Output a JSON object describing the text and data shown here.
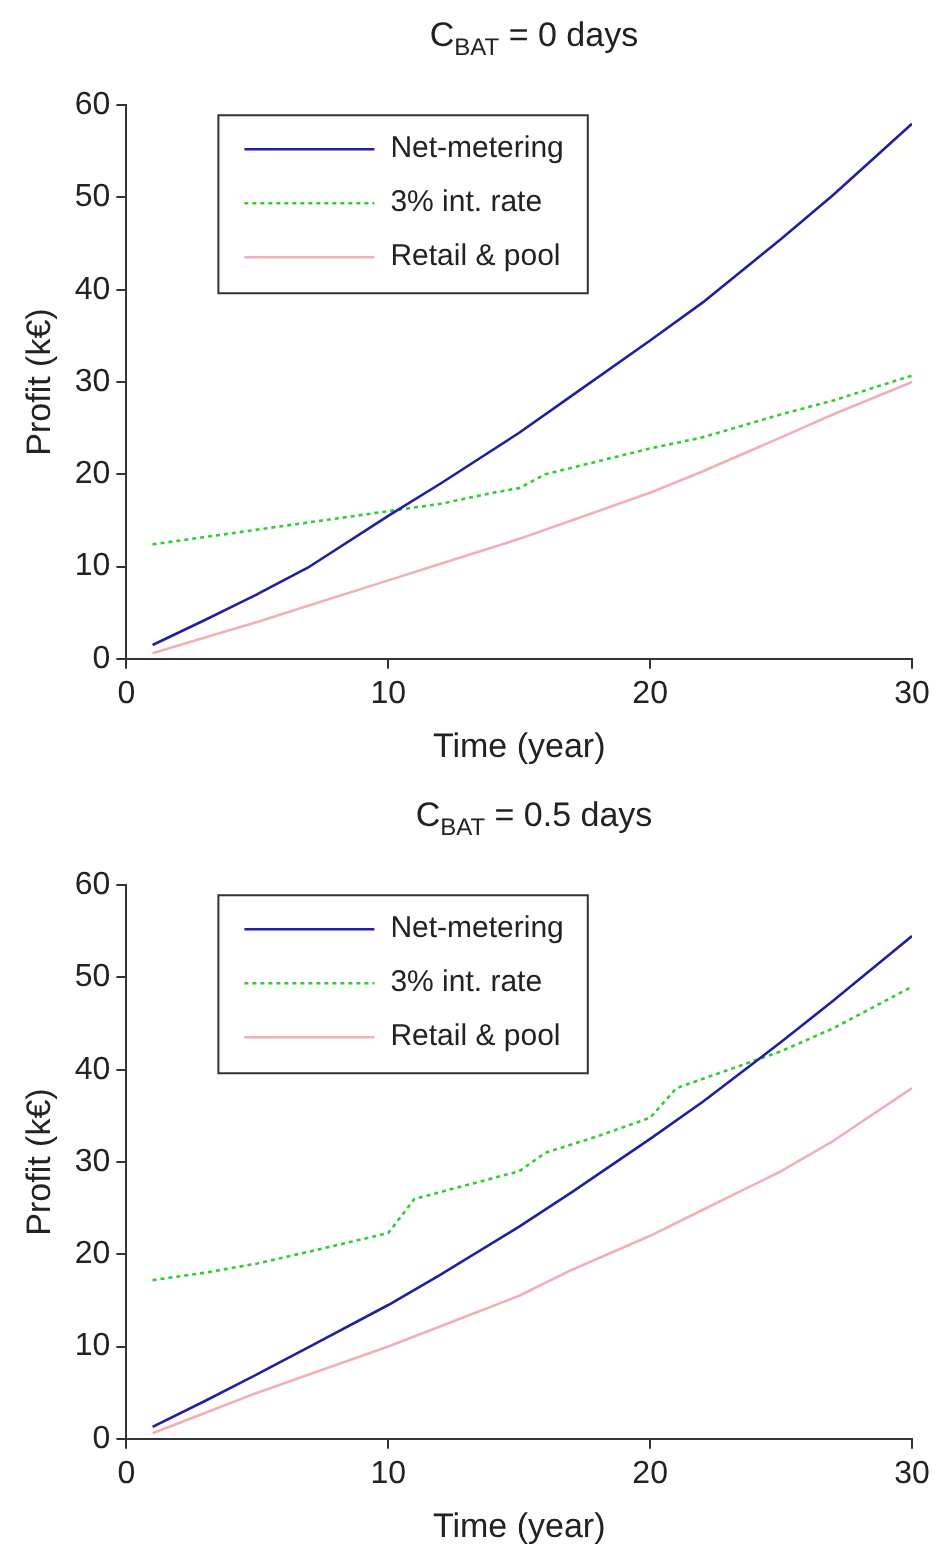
{
  "chart_data": [
    {
      "type": "line",
      "title": "C$_{BAT}$ = 0 days",
      "xlabel": "Time (year)",
      "ylabel": "Profit (k€)",
      "xlim": [
        0,
        30
      ],
      "xticks": [
        0,
        10,
        20,
        30
      ],
      "ylim": [
        0,
        60
      ],
      "yticks": [
        0,
        10,
        20,
        30,
        40,
        50,
        60
      ],
      "grid": false,
      "legend": "top left",
      "marker": "none",
      "series": [
        {
          "name": "Net-metering",
          "color": "#1f1f9f",
          "line_style": "solid",
          "x": [
            1,
            3,
            5,
            7,
            10,
            12,
            15,
            17,
            20,
            22,
            25,
            27,
            30
          ],
          "values": [
            1.5,
            4.2,
            7,
            10,
            15.5,
            19,
            24.5,
            28.5,
            34.5,
            38.6,
            45.5,
            50.3,
            58
          ]
        },
        {
          "name": "3% int. rate",
          "color": "#33cc33",
          "line_style": "dotted",
          "x": [
            1,
            3,
            5,
            7,
            10,
            12,
            14,
            15,
            16,
            18,
            20,
            22,
            25,
            27,
            30
          ],
          "values": [
            12.4,
            13.2,
            14,
            14.8,
            16,
            16.8,
            18,
            18.5,
            20,
            21.4,
            22.8,
            24,
            26.5,
            28,
            30.7
          ]
        },
        {
          "name": "Retail & pool",
          "color": "#f0b0b8",
          "line_style": "solid",
          "x": [
            1,
            3,
            5,
            7,
            10,
            12,
            15,
            17,
            20,
            22,
            25,
            27,
            30
          ],
          "values": [
            0.6,
            2.3,
            4,
            5.8,
            8.5,
            10.3,
            13,
            15,
            18,
            20.3,
            24,
            26.5,
            30
          ]
        }
      ]
    },
    {
      "type": "line",
      "title": "C$_{BAT}$ = 0.5 days",
      "xlabel": "Time (year)",
      "ylabel": "Profit (k€)",
      "xlim": [
        0,
        30
      ],
      "xticks": [
        0,
        10,
        20,
        30
      ],
      "ylim": [
        0,
        60
      ],
      "yticks": [
        0,
        10,
        20,
        30,
        40,
        50,
        60
      ],
      "grid": false,
      "legend": "top left",
      "marker": "none",
      "series": [
        {
          "name": "Net-metering",
          "color": "#1f1f9f",
          "line_style": "solid",
          "x": [
            1,
            3,
            5,
            7,
            10,
            12,
            15,
            17,
            20,
            22,
            25,
            27,
            30
          ],
          "values": [
            1.3,
            4.1,
            7,
            10,
            14.5,
            17.8,
            23,
            26.7,
            32.5,
            36.5,
            43,
            47.5,
            54.5
          ]
        },
        {
          "name": "3% int. rate",
          "color": "#33cc33",
          "line_style": "dotted",
          "x": [
            1,
            3,
            5,
            7,
            10,
            11,
            13,
            15,
            16,
            18,
            20,
            21,
            23,
            25,
            27,
            30
          ],
          "values": [
            17.2,
            18,
            19,
            20.3,
            22.3,
            26,
            27.5,
            29,
            31,
            32.8,
            34.8,
            38,
            40,
            42,
            44.5,
            49
          ]
        },
        {
          "name": "Retail & pool",
          "color": "#f0b0b8",
          "line_style": "solid",
          "x": [
            1,
            3,
            5,
            7,
            10,
            12,
            15,
            17,
            20,
            22,
            25,
            27,
            30
          ],
          "values": [
            0.6,
            2.8,
            5,
            7,
            10,
            12.2,
            15.5,
            18.3,
            22,
            24.8,
            29,
            32.3,
            38
          ]
        }
      ]
    }
  ]
}
